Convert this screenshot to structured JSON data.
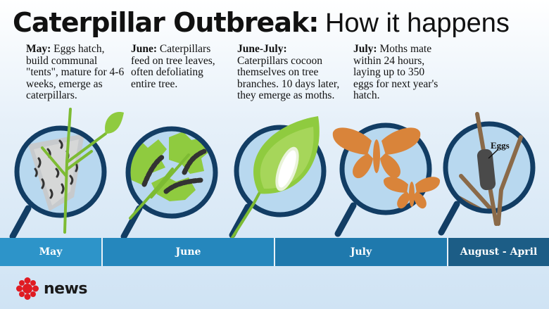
{
  "title": {
    "bold": "Caterpillar Outbreak:",
    "light": "How it happens"
  },
  "captions": {
    "may": {
      "lead": "May:",
      "text": "Eggs hatch, build communal \"tents\", mature for 4-6 weeks, emerge as caterpillars."
    },
    "june": {
      "lead": "June:",
      "text": "Caterpillars feed on tree leaves, often defoliating entire tree."
    },
    "june_july": {
      "lead": "June-July:",
      "text": "Caterpillars cocoon themselves on tree branches. 10 days later, they emerge as moths."
    },
    "july": {
      "lead": "July:",
      "text": "Moths mate within 24 hours, laying up to 350 eggs for next year's hatch."
    }
  },
  "eggs_label": "Eggs",
  "timeline": {
    "may": "May",
    "june": "June",
    "july": "July",
    "aug_april": "August - April"
  },
  "logo": {
    "word": "news",
    "gem_color": "#e01b22"
  },
  "colors": {
    "ring": "#123d64",
    "lens_sky": "#b8d8ef",
    "leaf_green": "#8fcb3f",
    "moth_orange": "#d9843a",
    "branch_brown": "#8a6a49"
  }
}
